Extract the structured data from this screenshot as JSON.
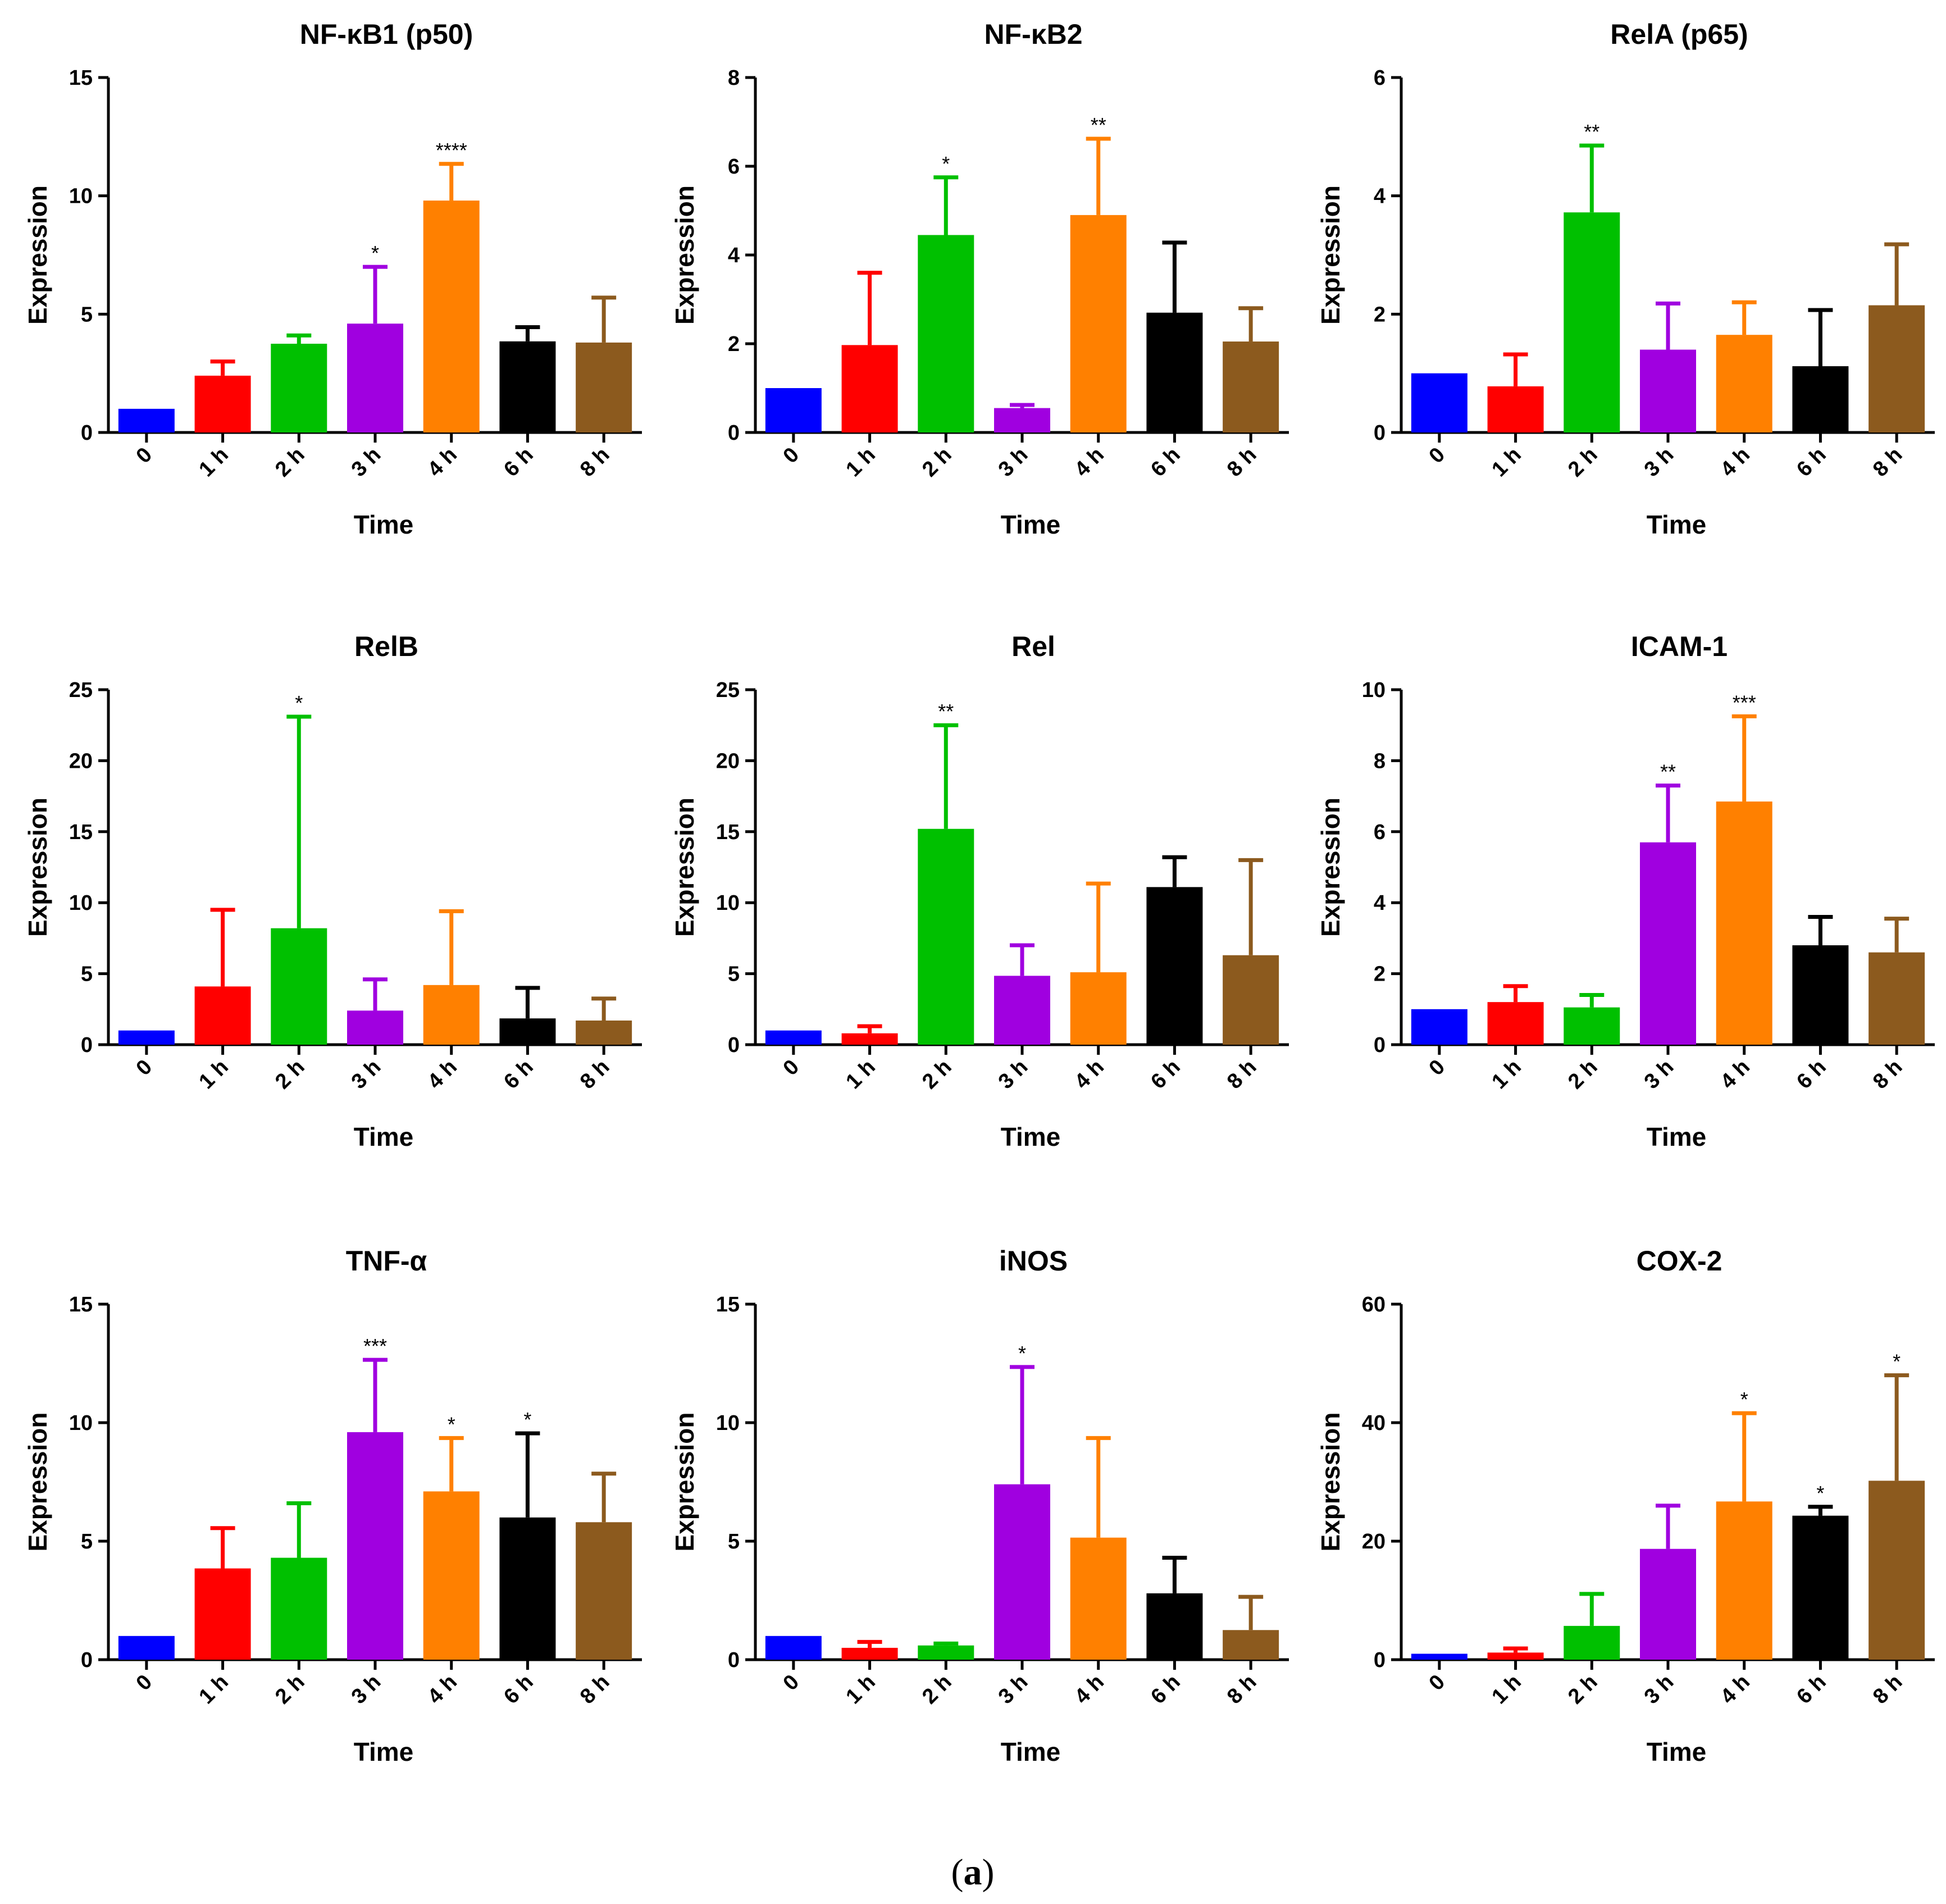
{
  "figure_label": {
    "open": "(",
    "letter": "a",
    "close": ")"
  },
  "chart_data": [
    {
      "type": "bar",
      "title": "NF-κB1 (p50)",
      "xlabel": "Time",
      "ylabel": "Expression",
      "ylim": [
        0,
        15
      ],
      "yticks": [
        0,
        5,
        10,
        15
      ],
      "categories": [
        "0",
        "1 h",
        "2 h",
        "3 h",
        "4 h",
        "6 h",
        "8 h"
      ],
      "values": [
        1.0,
        2.4,
        3.75,
        4.6,
        9.8,
        3.85,
        3.8
      ],
      "errors": [
        0,
        0.6,
        0.35,
        2.4,
        1.55,
        0.6,
        1.9
      ],
      "significance": [
        "",
        "",
        "",
        "*",
        "****",
        "",
        ""
      ]
    },
    {
      "type": "bar",
      "title": "NF-κB2",
      "xlabel": "Time",
      "ylabel": "Expression",
      "ylim": [
        0,
        8
      ],
      "yticks": [
        0,
        2,
        4,
        6,
        8
      ],
      "categories": [
        "0",
        "1 h",
        "2 h",
        "3 h",
        "4 h",
        "6 h",
        "8 h"
      ],
      "values": [
        1.0,
        1.97,
        4.45,
        0.55,
        4.9,
        2.7,
        2.05
      ],
      "errors": [
        0,
        1.63,
        1.3,
        0.07,
        1.72,
        1.58,
        0.75
      ],
      "significance": [
        "",
        "",
        "*",
        "",
        "**",
        "",
        ""
      ]
    },
    {
      "type": "bar",
      "title": "RelA (p65)",
      "xlabel": "Time",
      "ylabel": "Expression",
      "ylim": [
        0,
        6
      ],
      "yticks": [
        0,
        2,
        4,
        6
      ],
      "categories": [
        "0",
        "1 h",
        "2 h",
        "3 h",
        "4 h",
        "6 h",
        "8 h"
      ],
      "values": [
        1.0,
        0.78,
        3.72,
        1.4,
        1.65,
        1.12,
        2.15
      ],
      "errors": [
        0,
        0.54,
        1.13,
        0.78,
        0.55,
        0.95,
        1.03
      ],
      "significance": [
        "",
        "",
        "**",
        "",
        "",
        "",
        ""
      ]
    },
    {
      "type": "bar",
      "title": "RelB",
      "xlabel": "Time",
      "ylabel": "Expression",
      "ylim": [
        0,
        25
      ],
      "yticks": [
        0,
        5,
        10,
        15,
        20,
        25
      ],
      "categories": [
        "0",
        "1 h",
        "2 h",
        "3 h",
        "4 h",
        "6 h",
        "8 h"
      ],
      "values": [
        1.0,
        4.1,
        8.2,
        2.4,
        4.2,
        1.85,
        1.7
      ],
      "errors": [
        0,
        5.4,
        14.9,
        2.2,
        5.2,
        2.15,
        1.55
      ],
      "significance": [
        "",
        "",
        "*",
        "",
        "",
        "",
        ""
      ]
    },
    {
      "type": "bar",
      "title": "Rel",
      "xlabel": "Time",
      "ylabel": "Expression",
      "ylim": [
        0,
        25
      ],
      "yticks": [
        0,
        5,
        10,
        15,
        20,
        25
      ],
      "categories": [
        "0",
        "1 h",
        "2 h",
        "3 h",
        "4 h",
        "6 h",
        "8 h"
      ],
      "values": [
        1.0,
        0.8,
        15.2,
        4.85,
        5.1,
        11.1,
        6.3
      ],
      "errors": [
        0,
        0.5,
        7.3,
        2.15,
        6.25,
        2.1,
        6.7
      ],
      "significance": [
        "",
        "",
        "**",
        "",
        "",
        "",
        ""
      ]
    },
    {
      "type": "bar",
      "title": "ICAM-1",
      "xlabel": "Time",
      "ylabel": "Expression",
      "ylim": [
        0,
        10
      ],
      "yticks": [
        0,
        2,
        4,
        6,
        8,
        10
      ],
      "categories": [
        "0",
        "1 h",
        "2 h",
        "3 h",
        "4 h",
        "6 h",
        "8 h"
      ],
      "values": [
        1.0,
        1.2,
        1.05,
        5.7,
        6.85,
        2.8,
        2.6
      ],
      "errors": [
        0,
        0.45,
        0.35,
        1.6,
        2.4,
        0.8,
        0.95
      ],
      "significance": [
        "",
        "",
        "",
        "**",
        "***",
        "",
        ""
      ]
    },
    {
      "type": "bar",
      "title": "TNF-α",
      "xlabel": "Time",
      "ylabel": "Expression",
      "ylim": [
        0,
        15
      ],
      "yticks": [
        0,
        5,
        10,
        15
      ],
      "categories": [
        "0",
        "1 h",
        "2 h",
        "3 h",
        "4 h",
        "6 h",
        "8 h"
      ],
      "values": [
        1.0,
        3.85,
        4.3,
        9.6,
        7.1,
        6.0,
        5.8
      ],
      "errors": [
        0,
        1.7,
        2.3,
        3.05,
        2.25,
        3.55,
        2.05
      ],
      "significance": [
        "",
        "",
        "",
        "***",
        "*",
        "*",
        ""
      ]
    },
    {
      "type": "bar",
      "title": "iNOS",
      "xlabel": "Time",
      "ylabel": "Expression",
      "ylim": [
        0,
        15
      ],
      "yticks": [
        0,
        5,
        10,
        15
      ],
      "categories": [
        "0",
        "1 h",
        "2 h",
        "3 h",
        "4 h",
        "6 h",
        "8 h"
      ],
      "values": [
        1.0,
        0.5,
        0.6,
        7.4,
        5.15,
        2.8,
        1.25
      ],
      "errors": [
        0,
        0.25,
        0.08,
        4.95,
        4.2,
        1.5,
        1.4
      ],
      "significance": [
        "",
        "",
        "",
        "*",
        "",
        "",
        ""
      ]
    },
    {
      "type": "bar",
      "title": "COX-2",
      "xlabel": "Time",
      "ylabel": "Expression",
      "ylim": [
        0,
        60
      ],
      "yticks": [
        0,
        20,
        40,
        60
      ],
      "categories": [
        "0",
        "1 h",
        "2 h",
        "3 h",
        "4 h",
        "6 h",
        "8 h"
      ],
      "values": [
        1.0,
        1.2,
        5.7,
        18.7,
        26.7,
        24.3,
        30.2
      ],
      "errors": [
        0,
        0.7,
        5.4,
        7.3,
        14.9,
        1.5,
        17.8
      ],
      "significance": [
        "",
        "",
        "",
        "",
        "*",
        "*",
        "*"
      ]
    }
  ],
  "bar_colors": [
    "#0000ff",
    "#ff0000",
    "#00c000",
    "#a000e0",
    "#ff8000",
    "#000000",
    "#8c5a1e"
  ]
}
